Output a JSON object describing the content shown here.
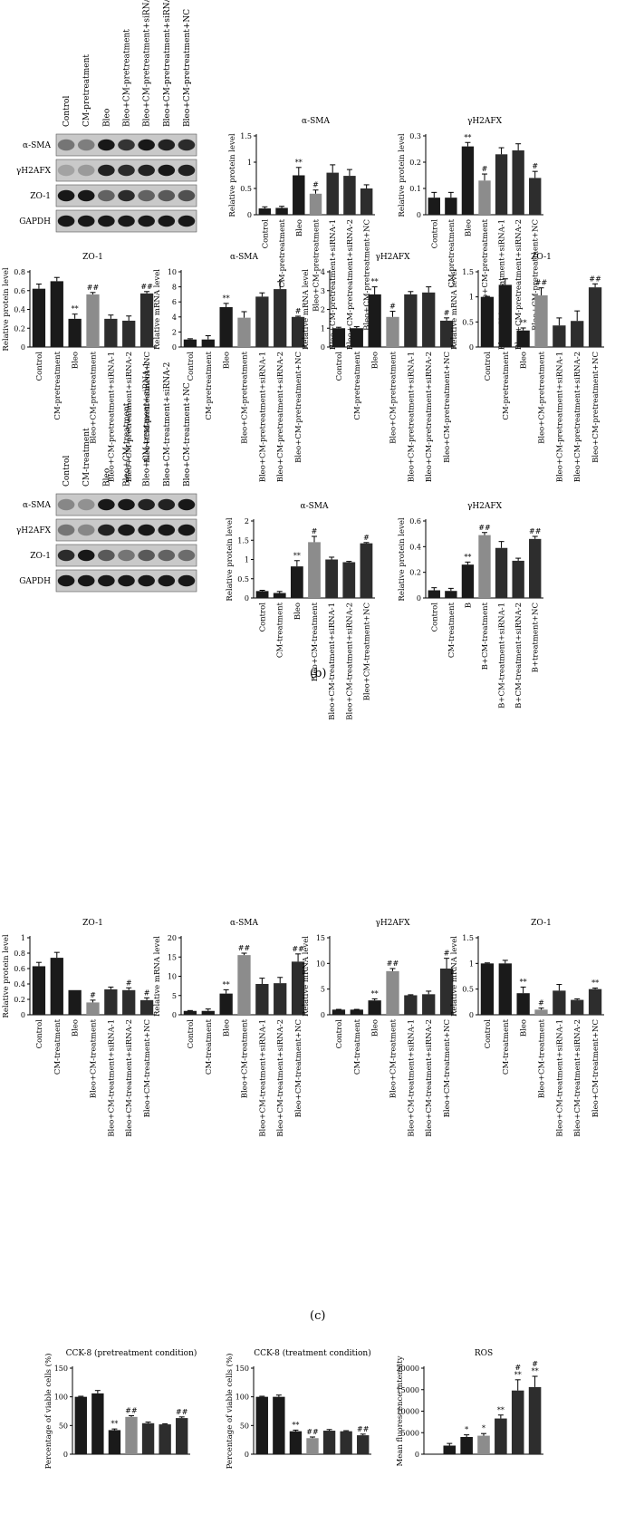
{
  "panel_b_caption": "(b)",
  "panel_c_caption": "(c)",
  "blots": [
    {
      "lanes": [
        "Control",
        "CM-pretreatment",
        "Bleo",
        "Bleo+CM-pretreatment",
        "Bleo+CM-pretreatment+siRNA-1",
        "Bleo+CM-pretreatment+siRNA-2",
        "Bleo+CM-pretreatment+NC"
      ],
      "rows": [
        "α-SMA",
        "γH2AFX",
        "ZO-1",
        "GAPDH"
      ],
      "band_intensity": [
        [
          0.45,
          0.4,
          0.95,
          0.8,
          0.95,
          0.9,
          0.85
        ],
        [
          0.2,
          0.25,
          0.9,
          0.85,
          0.9,
          0.95,
          0.9
        ],
        [
          0.95,
          0.95,
          0.55,
          0.85,
          0.55,
          0.6,
          0.65
        ],
        [
          0.95,
          0.95,
          0.95,
          0.95,
          0.95,
          0.95,
          0.95
        ]
      ]
    },
    {
      "lanes": [
        "Control",
        "CM-treatment",
        "Bleo",
        "Bleo+CM-treatment",
        "Bleo+CM-treatment+siRNA-1",
        "Bleo+CM-treatment+siRNA-2",
        "Bleo+CM-treatment+NC"
      ],
      "rows": [
        "α-SMA",
        "γH2AFX",
        "ZO-1",
        "GAPDH"
      ],
      "band_intensity": [
        [
          0.35,
          0.3,
          0.95,
          0.95,
          0.9,
          0.9,
          0.95
        ],
        [
          0.45,
          0.35,
          0.9,
          0.95,
          0.95,
          0.95,
          0.95
        ],
        [
          0.85,
          0.95,
          0.6,
          0.45,
          0.6,
          0.55,
          0.5
        ],
        [
          0.95,
          0.95,
          0.95,
          0.95,
          0.95,
          0.95,
          0.95
        ]
      ]
    }
  ],
  "chart_data": [
    {
      "type": "bar",
      "title": "α-SMA",
      "ylabel": "Relative protein level",
      "ylim": [
        0,
        1.5
      ],
      "yticks": [
        0,
        0.5,
        1.0,
        1.5
      ],
      "categories": [
        "Control",
        "CM-pretreatment",
        "Bleo",
        "Bleo+CM-pretreatment",
        "Bleo+CM-pretreatment+siRNA-1",
        "Bleo+CM-pretreatment+siRNA-2",
        "Bleo+CM-pretreatment+NC"
      ],
      "values": [
        0.12,
        0.13,
        0.75,
        0.4,
        0.8,
        0.74,
        0.5
      ],
      "errors": [
        0.03,
        0.03,
        0.15,
        0.07,
        0.15,
        0.12,
        0.07
      ],
      "annotations": [
        "",
        "",
        "**",
        "#",
        "",
        "",
        ""
      ],
      "colors": [
        "#1a1a1a",
        "#1a1a1a",
        "#1a1a1a",
        "#8c8c8c",
        "#2d2d2d",
        "#2d2d2d",
        "#2d2d2d"
      ]
    },
    {
      "type": "bar",
      "title": "γH2AFX",
      "ylabel": "Relative protein level",
      "ylim": [
        0,
        0.3
      ],
      "yticks": [
        0,
        0.1,
        0.2,
        0.3
      ],
      "categories": [
        "Control",
        "CM-pretreatment",
        "Bleo",
        "Bleo+CM-pretreatment",
        "Bleo+CM-pretreatment+siRNA-1",
        "Bleo+CM-pretreatment+siRNA-2",
        "Bleo+CM-pretreatment+NC"
      ],
      "values": [
        0.065,
        0.065,
        0.26,
        0.13,
        0.23,
        0.245,
        0.14
      ],
      "errors": [
        0.02,
        0.02,
        0.015,
        0.025,
        0.025,
        0.025,
        0.025
      ],
      "annotations": [
        "",
        "",
        "**",
        "#",
        "",
        "",
        "#"
      ],
      "colors": [
        "#1a1a1a",
        "#1a1a1a",
        "#1a1a1a",
        "#8c8c8c",
        "#2d2d2d",
        "#2d2d2d",
        "#2d2d2d"
      ]
    },
    {
      "type": "bar",
      "title": "ZO-1",
      "ylabel": "Relative protein level",
      "ylim": [
        0,
        0.8
      ],
      "yticks": [
        0,
        0.2,
        0.4,
        0.6,
        0.8
      ],
      "categories": [
        "Control",
        "CM-pretreatment",
        "Bleo",
        "Bleo+CM-pretreatment",
        "Bleo+CM-pretreatment+siRNA-1",
        "Bleo+CM-pretreatment+siRNA-2",
        "Bleo+CM-pretreatment+NC"
      ],
      "values": [
        0.62,
        0.7,
        0.3,
        0.56,
        0.3,
        0.28,
        0.57
      ],
      "errors": [
        0.05,
        0.04,
        0.05,
        0.02,
        0.04,
        0.05,
        0.02
      ],
      "annotations": [
        "",
        "",
        "**",
        "##",
        "",
        "",
        "##"
      ],
      "colors": [
        "#1a1a1a",
        "#1a1a1a",
        "#1a1a1a",
        "#8c8c8c",
        "#2d2d2d",
        "#2d2d2d",
        "#2d2d2d"
      ]
    },
    {
      "type": "bar",
      "title": "α-SMA",
      "ylabel": "Relative mRNA level",
      "ylim": [
        0,
        10
      ],
      "yticks": [
        0,
        2,
        4,
        6,
        8,
        10
      ],
      "categories": [
        "Control",
        "CM-pretreatment",
        "Bleo",
        "Bleo+CM-pretreatment",
        "Bleo+CM-pretreatment+siRNA-1",
        "Bleo+CM-pretreatment+siRNA-2",
        "Bleo+CM-pretreatment+NC"
      ],
      "values": [
        1.0,
        1.0,
        5.3,
        3.9,
        6.7,
        7.7,
        4.0
      ],
      "errors": [
        0.1,
        0.5,
        0.5,
        0.8,
        0.5,
        1.0,
        0.1
      ],
      "annotations": [
        "",
        "",
        "**",
        "",
        "",
        "",
        "#"
      ],
      "colors": [
        "#1a1a1a",
        "#1a1a1a",
        "#1a1a1a",
        "#8c8c8c",
        "#2d2d2d",
        "#2d2d2d",
        "#2d2d2d"
      ]
    },
    {
      "type": "bar",
      "title": "γH2AFX",
      "ylabel": "Relative mRNA level",
      "ylim": [
        0,
        4
      ],
      "yticks": [
        0,
        1,
        2,
        3,
        4
      ],
      "categories": [
        "Control",
        "CM-pretreatment",
        "Bleo",
        "Bleo+CM-pretreatment",
        "Bleo+CM-pretreatment+siRNA-1",
        "Bleo+CM-pretreatment+siRNA-2",
        "Bleo+CM-pretreatment+NC"
      ],
      "values": [
        1.0,
        1.0,
        2.8,
        1.6,
        2.8,
        2.9,
        1.4
      ],
      "errors": [
        0.05,
        0.08,
        0.4,
        0.3,
        0.15,
        0.3,
        0.15
      ],
      "annotations": [
        "",
        "",
        "**",
        "#",
        "",
        "",
        "#"
      ],
      "colors": [
        "#1a1a1a",
        "#1a1a1a",
        "#1a1a1a",
        "#8c8c8c",
        "#2d2d2d",
        "#2d2d2d",
        "#2d2d2d"
      ]
    },
    {
      "type": "bar",
      "title": "ZO-1",
      "ylabel": "Relative mRNA level",
      "ylim": [
        0,
        1.5
      ],
      "yticks": [
        0,
        0.5,
        1.0,
        1.5
      ],
      "categories": [
        "Control",
        "CM-pretreatment",
        "Bleo",
        "Bleo+CM-pretreatment",
        "Bleo+CM-pretreatment+siRNA-1",
        "Bleo+CM-pretreatment+siRNA-2",
        "Bleo+CM-pretreatment+NC"
      ],
      "values": [
        1.0,
        1.24,
        0.33,
        1.03,
        0.43,
        0.52,
        1.19
      ],
      "errors": [
        0.01,
        0.12,
        0.05,
        0.15,
        0.15,
        0.2,
        0.07
      ],
      "annotations": [
        "",
        "",
        "**",
        "##",
        "",
        "",
        "##"
      ],
      "colors": [
        "#1a1a1a",
        "#1a1a1a",
        "#1a1a1a",
        "#8c8c8c",
        "#2d2d2d",
        "#2d2d2d",
        "#2d2d2d"
      ]
    },
    {
      "type": "bar",
      "title": "α-SMA",
      "ylabel": "Relative protein level",
      "ylim": [
        0,
        2.0
      ],
      "yticks": [
        0,
        0.5,
        1.0,
        1.5,
        2.0
      ],
      "categories": [
        "Control",
        "CM-treatment",
        "Bleo",
        "Bleo+CM-treatment",
        "Bleo+CM-treatment+siRNA-1",
        "Bleo+CM-treatment+siRNA-2",
        "Bleo+CM-treatment+NC"
      ],
      "values": [
        0.18,
        0.13,
        0.82,
        1.45,
        1.0,
        0.93,
        1.42
      ],
      "errors": [
        0.02,
        0.04,
        0.15,
        0.15,
        0.06,
        0.02,
        0.02
      ],
      "annotations": [
        "",
        "",
        "**",
        "#",
        "",
        "",
        "#"
      ],
      "colors": [
        "#1a1a1a",
        "#1a1a1a",
        "#1a1a1a",
        "#8c8c8c",
        "#2d2d2d",
        "#2d2d2d",
        "#2d2d2d"
      ]
    },
    {
      "type": "bar",
      "title": "γH2AFX",
      "ylabel": "Relative protein level",
      "ylim": [
        0,
        0.6
      ],
      "yticks": [
        0,
        0.2,
        0.4,
        0.6
      ],
      "categories": [
        "Control",
        "CM-treatment",
        "B",
        "B+CM-treatment",
        "B+CM-treatment+siRNA-1",
        "B+CM-treatment+siRNA-2",
        "B+treatment+NC"
      ],
      "values": [
        0.06,
        0.055,
        0.26,
        0.49,
        0.39,
        0.29,
        0.46
      ],
      "errors": [
        0.02,
        0.02,
        0.02,
        0.02,
        0.05,
        0.02,
        0.02
      ],
      "annotations": [
        "",
        "",
        "**",
        "##",
        "",
        "",
        "##"
      ],
      "colors": [
        "#1a1a1a",
        "#1a1a1a",
        "#1a1a1a",
        "#8c8c8c",
        "#2d2d2d",
        "#2d2d2d",
        "#2d2d2d"
      ]
    },
    {
      "type": "bar",
      "title": "ZO-1",
      "ylabel": "Relative protein level",
      "ylim": [
        0,
        1.0
      ],
      "yticks": [
        0,
        0.2,
        0.4,
        0.6,
        0.8,
        1.0
      ],
      "categories": [
        "Control",
        "CM-treatment",
        "Bleo",
        "Bleo+CM-treatment",
        "Bleo+CM-treatment+siRNA-1",
        "Bleo+CM-treatment+siRNA-2",
        "Bleo+CM-treatment+NC"
      ],
      "values": [
        0.63,
        0.74,
        0.32,
        0.16,
        0.33,
        0.32,
        0.19
      ],
      "errors": [
        0.05,
        0.07,
        0.0,
        0.03,
        0.03,
        0.03,
        0.03
      ],
      "annotations": [
        "",
        "",
        "",
        "#",
        "",
        "#",
        "#"
      ],
      "colors": [
        "#1a1a1a",
        "#1a1a1a",
        "#1a1a1a",
        "#8c8c8c",
        "#2d2d2d",
        "#2d2d2d",
        "#2d2d2d"
      ]
    },
    {
      "type": "bar",
      "title": "α-SMA",
      "ylabel": "Relative mRNA level",
      "ylim": [
        0,
        20
      ],
      "yticks": [
        0,
        5,
        10,
        15,
        20
      ],
      "categories": [
        "Control",
        "CM-treatment",
        "Bleo",
        "Bleo+CM-treatment",
        "Bleo+CM-treatment+siRNA-1",
        "Bleo+CM-treatment+siRNA-2",
        "Bleo+CM-treatment+NC"
      ],
      "values": [
        1.0,
        1.0,
        5.5,
        15.5,
        8.0,
        8.2,
        13.8
      ],
      "errors": [
        0.1,
        0.5,
        1.0,
        0.5,
        1.5,
        1.5,
        2.0
      ],
      "annotations": [
        "",
        "",
        "**",
        "##",
        "",
        "",
        "##"
      ],
      "colors": [
        "#1a1a1a",
        "#1a1a1a",
        "#1a1a1a",
        "#8c8c8c",
        "#2d2d2d",
        "#2d2d2d",
        "#2d2d2d"
      ]
    },
    {
      "type": "bar",
      "title": "γH2AFX",
      "ylabel": "Relative mRNA level",
      "ylim": [
        0,
        15
      ],
      "yticks": [
        0,
        5,
        10,
        15
      ],
      "categories": [
        "Control",
        "CM-treatment",
        "Bleo",
        "Bleo+CM-treatment",
        "Bleo+CM-treatment+siRNA-1",
        "Bleo+CM-treatment+siRNA-2",
        "Bleo+CM-treatment+NC"
      ],
      "values": [
        1.0,
        1.0,
        2.8,
        8.5,
        3.8,
        4.0,
        9.0
      ],
      "errors": [
        0.05,
        0.05,
        0.3,
        0.5,
        0.1,
        0.6,
        2.0
      ],
      "annotations": [
        "",
        "",
        "**",
        "##",
        "",
        "",
        "#"
      ],
      "colors": [
        "#1a1a1a",
        "#1a1a1a",
        "#1a1a1a",
        "#8c8c8c",
        "#2d2d2d",
        "#2d2d2d",
        "#2d2d2d"
      ]
    },
    {
      "type": "bar",
      "title": "ZO-1",
      "ylabel": "Relative mRNA level",
      "ylim": [
        0,
        1.5
      ],
      "yticks": [
        0,
        0.5,
        1.0,
        1.5
      ],
      "categories": [
        "Control",
        "CM-treatment",
        "Bleo",
        "Bleo+CM-treatment",
        "Bleo+CM-treatment+siRNA-1",
        "Bleo+CM-treatment+siRNA-2",
        "Bleo+CM-treatment+NC"
      ],
      "values": [
        1.0,
        1.0,
        0.42,
        0.1,
        0.47,
        0.29,
        0.5
      ],
      "errors": [
        0.01,
        0.06,
        0.12,
        0.03,
        0.12,
        0.02,
        0.02
      ],
      "annotations": [
        "",
        "",
        "**",
        "#",
        "",
        "",
        "**"
      ],
      "colors": [
        "#1a1a1a",
        "#1a1a1a",
        "#1a1a1a",
        "#8c8c8c",
        "#2d2d2d",
        "#2d2d2d",
        "#2d2d2d"
      ]
    },
    {
      "type": "bar",
      "title": "CCK-8 (pretreatment condition)",
      "ylabel": "Percentage of viable cells (%)",
      "ylim": [
        0,
        150
      ],
      "yticks": [
        0,
        50,
        100,
        150
      ],
      "categories": [
        "",
        "",
        "",
        "",
        "",
        "",
        ""
      ],
      "values": [
        100,
        106,
        42,
        65,
        54,
        52,
        63
      ],
      "errors": [
        1,
        5,
        2,
        2,
        2,
        1,
        2
      ],
      "annotations": [
        "",
        "",
        "**",
        "##",
        "",
        "",
        "##"
      ],
      "colors": [
        "#1a1a1a",
        "#1a1a1a",
        "#1a1a1a",
        "#8c8c8c",
        "#2d2d2d",
        "#2d2d2d",
        "#2d2d2d"
      ]
    },
    {
      "type": "bar",
      "title": "CCK-8 (treatment condition)",
      "ylabel": "Percentage of viable cells (%)",
      "ylim": [
        0,
        150
      ],
      "yticks": [
        0,
        50,
        100,
        150
      ],
      "categories": [
        "",
        "",
        "",
        "",
        "",
        "",
        ""
      ],
      "values": [
        100,
        100,
        40,
        28,
        41,
        40,
        33
      ],
      "errors": [
        1,
        3,
        2,
        2,
        2,
        1,
        2
      ],
      "annotations": [
        "",
        "",
        "**",
        "##",
        "",
        "",
        "##"
      ],
      "colors": [
        "#1a1a1a",
        "#1a1a1a",
        "#1a1a1a",
        "#8c8c8c",
        "#2d2d2d",
        "#2d2d2d",
        "#2d2d2d"
      ]
    },
    {
      "type": "bar",
      "title": "ROS",
      "ylabel": "Mean fluorescence intensity",
      "ylim": [
        0,
        20000
      ],
      "yticks": [
        0,
        5000,
        10000,
        15000,
        20000
      ],
      "categories": [
        "",
        "",
        "",
        "",
        "",
        "",
        ""
      ],
      "values": [
        0,
        2000,
        4000,
        4300,
        8300,
        14800,
        15600
      ],
      "errors": [
        0,
        500,
        500,
        500,
        800,
        2500,
        2500
      ],
      "annotations": [
        "",
        "",
        "*",
        "*",
        "**",
        "#\n**",
        "#\n**"
      ],
      "colors": [
        "#1a1a1a",
        "#1a1a1a",
        "#1a1a1a",
        "#8c8c8c",
        "#2d2d2d",
        "#2d2d2d",
        "#2d2d2d"
      ]
    }
  ]
}
